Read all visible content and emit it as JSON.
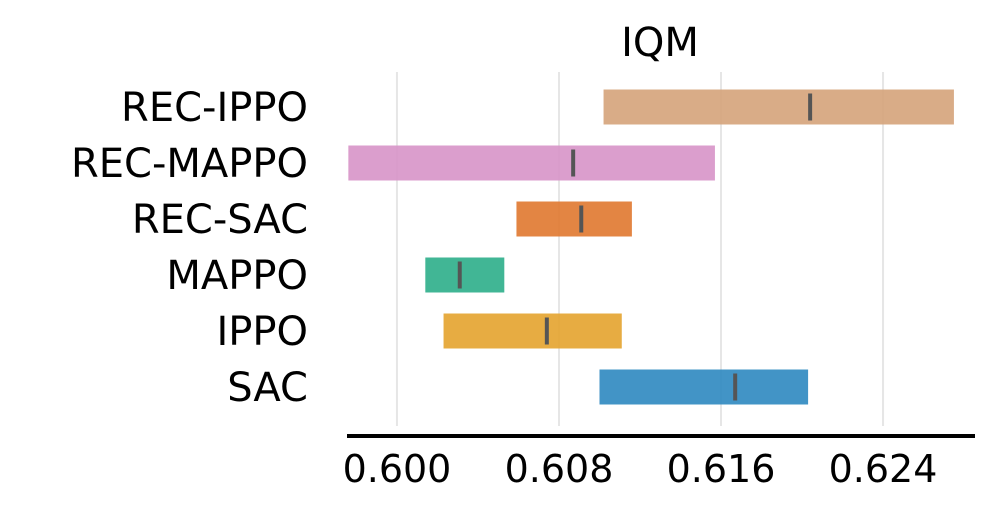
{
  "chart_data": {
    "type": "interval",
    "title": "IQM",
    "xlabel": "",
    "ylabel": "",
    "xlim": [
      0.5962,
      0.6278
    ],
    "xticks": [
      "0.600",
      "0.608",
      "0.616",
      "0.624"
    ],
    "xtick_values": [
      0.6,
      0.608,
      0.616,
      0.624
    ],
    "grid": true,
    "series": [
      {
        "name": "REC-IPPO",
        "low": 0.6102,
        "high": 0.6275,
        "point": 0.6204,
        "color": "#D5A37A"
      },
      {
        "name": "REC-MAPPO",
        "low": 0.5976,
        "high": 0.6157,
        "point": 0.6087,
        "color": "#D794C8"
      },
      {
        "name": "REC-SAC",
        "low": 0.6059,
        "high": 0.6116,
        "point": 0.6091,
        "color": "#E0782F"
      },
      {
        "name": "MAPPO",
        "low": 0.6014,
        "high": 0.6053,
        "point": 0.6031,
        "color": "#2CAE8A"
      },
      {
        "name": "IPPO",
        "low": 0.6023,
        "high": 0.6111,
        "point": 0.6074,
        "color": "#E4A32D"
      },
      {
        "name": "SAC",
        "low": 0.61,
        "high": 0.6203,
        "point": 0.6167,
        "color": "#2E88C0"
      }
    ]
  }
}
